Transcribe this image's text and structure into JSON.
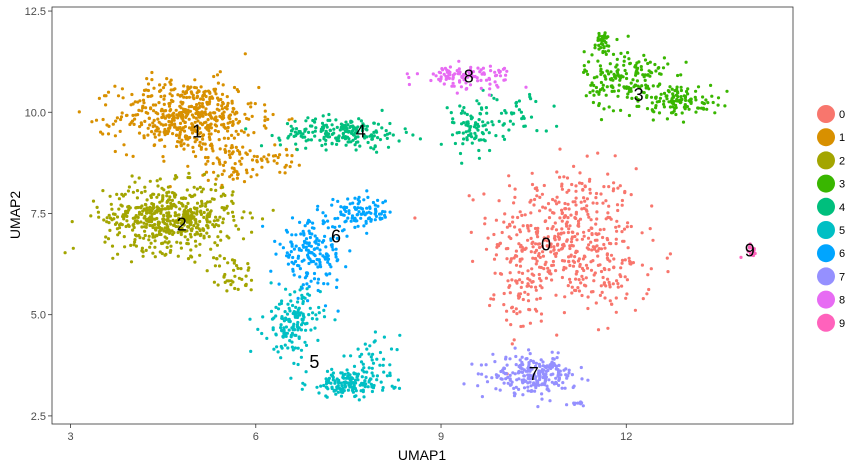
{
  "chart_data": {
    "type": "scatter",
    "xlabel": "UMAP1",
    "ylabel": "UMAP2",
    "xlim": [
      2.7,
      14.7
    ],
    "ylim": [
      2.3,
      12.6
    ],
    "x_ticks": [
      3,
      6,
      9,
      12
    ],
    "x_tick_labels": [
      "3",
      "6",
      "9",
      "12"
    ],
    "y_ticks": [
      2.5,
      5.0,
      7.5,
      10.0,
      12.5
    ],
    "y_tick_labels": [
      "2.5",
      "5.0",
      "7.5",
      "10.0",
      "12.5"
    ],
    "grid": false,
    "legend_position": "right",
    "legend": [
      "0",
      "1",
      "2",
      "3",
      "4",
      "5",
      "6",
      "7",
      "8",
      "9"
    ],
    "series": [
      {
        "name": "0",
        "color": "#F8766D",
        "label_xy": [
          10.7,
          6.7
        ],
        "regions": [
          {
            "center": [
              11.0,
              7.0
            ],
            "spread": [
              0.8,
              1.1
            ],
            "n": 420
          },
          {
            "center": [
              10.4,
              5.6
            ],
            "spread": [
              0.35,
              0.7
            ],
            "n": 80
          },
          {
            "center": [
              11.7,
              5.9
            ],
            "spread": [
              0.45,
              0.6
            ],
            "n": 70
          }
        ]
      },
      {
        "name": "1",
        "color": "#D89000",
        "label_xy": [
          5.05,
          9.5
        ],
        "regions": [
          {
            "center": [
              4.9,
              9.9
            ],
            "spread": [
              0.75,
              0.6
            ],
            "n": 520
          },
          {
            "center": [
              5.6,
              8.7
            ],
            "spread": [
              0.35,
              0.35
            ],
            "n": 60
          },
          {
            "center": [
              6.4,
              8.9
            ],
            "spread": [
              0.25,
              0.25
            ],
            "n": 30
          }
        ]
      },
      {
        "name": "2",
        "color": "#A3A500",
        "label_xy": [
          4.8,
          7.2
        ],
        "regions": [
          {
            "center": [
              4.6,
              7.4
            ],
            "spread": [
              0.7,
              0.55
            ],
            "n": 560
          },
          {
            "center": [
              5.6,
              6.0
            ],
            "spread": [
              0.25,
              0.35
            ],
            "n": 40
          }
        ]
      },
      {
        "name": "3",
        "color": "#39B600",
        "label_xy": [
          12.2,
          10.4
        ],
        "regions": [
          {
            "center": [
              12.0,
              10.8
            ],
            "spread": [
              0.45,
              0.5
            ],
            "n": 180
          },
          {
            "center": [
              12.9,
              10.3
            ],
            "spread": [
              0.4,
              0.25
            ],
            "n": 110
          },
          {
            "center": [
              11.6,
              11.7
            ],
            "spread": [
              0.12,
              0.22
            ],
            "n": 40
          }
        ]
      },
      {
        "name": "4",
        "color": "#00BF7D",
        "label_xy": [
          7.7,
          9.5
        ],
        "regions": [
          {
            "center": [
              7.4,
              9.5
            ],
            "spread": [
              0.65,
              0.25
            ],
            "n": 200
          },
          {
            "center": [
              9.5,
              9.6
            ],
            "spread": [
              0.35,
              0.45
            ],
            "n": 90
          },
          {
            "center": [
              10.3,
              10.0
            ],
            "spread": [
              0.3,
              0.35
            ],
            "n": 30
          }
        ]
      },
      {
        "name": "5",
        "color": "#00BFC4",
        "label_xy": [
          6.95,
          3.8
        ],
        "regions": [
          {
            "center": [
              6.6,
              4.8
            ],
            "spread": [
              0.3,
              0.55
            ],
            "n": 150
          },
          {
            "center": [
              7.5,
              3.3
            ],
            "spread": [
              0.45,
              0.22
            ],
            "n": 150
          },
          {
            "center": [
              7.9,
              3.9
            ],
            "spread": [
              0.3,
              0.35
            ],
            "n": 40
          }
        ]
      },
      {
        "name": "6",
        "color": "#00A5FF",
        "label_xy": [
          7.3,
          6.9
        ],
        "regions": [
          {
            "center": [
              6.9,
              6.5
            ],
            "spread": [
              0.35,
              0.55
            ],
            "n": 180
          },
          {
            "center": [
              7.7,
              7.5
            ],
            "spread": [
              0.35,
              0.25
            ],
            "n": 100
          }
        ]
      },
      {
        "name": "7",
        "color": "#9590FF",
        "label_xy": [
          10.5,
          3.5
        ],
        "regions": [
          {
            "center": [
              10.5,
              3.5
            ],
            "spread": [
              0.45,
              0.3
            ],
            "n": 240
          },
          {
            "center": [
              11.2,
              2.8
            ],
            "spread": [
              0.08,
              0.04
            ],
            "n": 10
          }
        ]
      },
      {
        "name": "8",
        "color": "#E76BF3",
        "label_xy": [
          9.45,
          10.85
        ],
        "regions": [
          {
            "center": [
              9.4,
              10.9
            ],
            "spread": [
              0.5,
              0.18
            ],
            "n": 110
          }
        ]
      },
      {
        "name": "9",
        "color": "#FF62BC",
        "label_xy": [
          14.0,
          6.55
        ],
        "regions": [
          {
            "center": [
              14.0,
              6.6
            ],
            "spread": [
              0.08,
              0.1
            ],
            "n": 14
          }
        ]
      }
    ]
  }
}
